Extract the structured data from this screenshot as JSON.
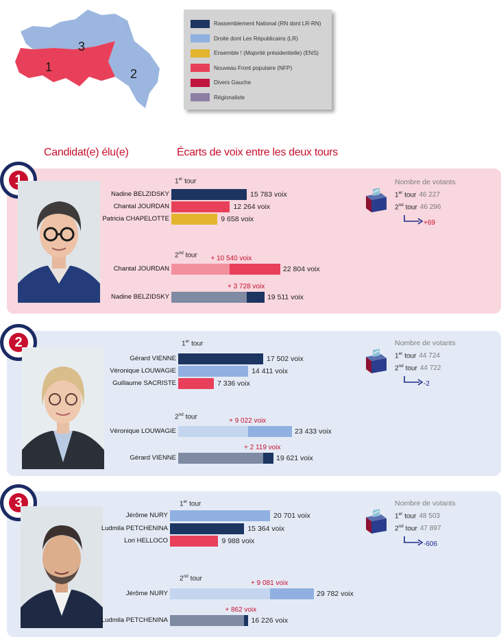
{
  "map": {
    "zones": [
      {
        "label": "1",
        "color": "#e8405a"
      },
      {
        "label": "2",
        "color": "#9bb6df"
      },
      {
        "label": "3",
        "color": "#9bb6df"
      }
    ]
  },
  "legend": [
    {
      "label": "Rassemblement National (RN dont LR-RN)",
      "color": "#1c3561"
    },
    {
      "label": "Droite dont Les Républicains (LR)",
      "color": "#8fb0e0"
    },
    {
      "label": "Ensemble ! (Majorité présidentielle) (ENS)",
      "color": "#e3b52e"
    },
    {
      "label": "Nouveau Front populaire (NFP)",
      "color": "#e8405a"
    },
    {
      "label": "Divers Gauche",
      "color": "#c0143c"
    },
    {
      "label": "Régionaliste",
      "color": "#8e7ea4"
    }
  ],
  "headings": {
    "elected": "Candidat(e) élu(e)",
    "gaps": "Écarts de voix entre les deux tours"
  },
  "labels": {
    "round1_num": "1",
    "round2_num": "2",
    "round1_sup": "er",
    "round2_sup": "nd",
    "tour": "tour",
    "voters_title": "Nombre de votants"
  },
  "chart_data": [
    {
      "type": "bar",
      "district": "1",
      "round1": [
        {
          "name": "Nadine BELZIDSKY",
          "votes": 15783,
          "votes_label": "15 783 voix",
          "color": "#1c3561"
        },
        {
          "name": "Chantal JOURDAN",
          "votes": 12264,
          "votes_label": "12 264 voix",
          "color": "#e8405a"
        },
        {
          "name": "Patricia CHAPELOTTE",
          "votes": 9658,
          "votes_label": "9 658 voix",
          "color": "#e3b52e"
        }
      ],
      "round2": [
        {
          "name": "Chantal JOURDAN",
          "votes": 22804,
          "votes_label": "22 804 voix",
          "gain": 10540,
          "gain_label": "+ 10 540 voix",
          "color": "#e8405a",
          "base_color": "#f2909e"
        },
        {
          "name": "Nadine BELZIDSKY",
          "votes": 19511,
          "votes_label": "19 511 voix",
          "gain": 3728,
          "gain_label": "+ 3 728 voix",
          "color": "#1c3561",
          "base_color": "#7f8aa3"
        }
      ],
      "voters": {
        "round1": "46 227",
        "round2": "46 296",
        "diff": "+69"
      }
    },
    {
      "type": "bar",
      "district": "2",
      "round1": [
        {
          "name": "Gérard VIENNE",
          "votes": 17502,
          "votes_label": "17 502 voix",
          "color": "#1c3561"
        },
        {
          "name": "Véronique LOUWAGIE",
          "votes": 14411,
          "votes_label": "14 411 voix",
          "color": "#8fb0e0"
        },
        {
          "name": "Guillaume SACRISTE",
          "votes": 7336,
          "votes_label": "7 336 voix",
          "color": "#e8405a"
        }
      ],
      "round2": [
        {
          "name": "Véronique LOUWAGIE",
          "votes": 23433,
          "votes_label": "23 433 voix",
          "gain": 9022,
          "gain_label": "+ 9 022 voix",
          "color": "#8fb0e0",
          "base_color": "#c3d5ef"
        },
        {
          "name": "Gérard VIENNE",
          "votes": 19621,
          "votes_label": "19 621 voix",
          "gain": 2119,
          "gain_label": "+ 2 119 voix",
          "color": "#1c3561",
          "base_color": "#7f8aa3"
        }
      ],
      "voters": {
        "round1": "44 724",
        "round2": "44 722",
        "diff": "-2"
      }
    },
    {
      "type": "bar",
      "district": "3",
      "round1": [
        {
          "name": "Jérôme NURY",
          "votes": 20701,
          "votes_label": "20 701 voix",
          "color": "#8fb0e0"
        },
        {
          "name": "Ludmila PETCHENINA",
          "votes": 15364,
          "votes_label": "15 364 voix",
          "color": "#1c3561"
        },
        {
          "name": "Lori HELLOCO",
          "votes": 9988,
          "votes_label": "9 988 voix",
          "color": "#e8405a"
        }
      ],
      "round2": [
        {
          "name": "Jérôme NURY",
          "votes": 29782,
          "votes_label": "29 782 voix",
          "gain": 9081,
          "gain_label": "+ 9 081 voix",
          "color": "#8fb0e0",
          "base_color": "#c3d5ef"
        },
        {
          "name": "Ludmila PETCHENINA",
          "votes": 16226,
          "votes_label": "16 226 voix",
          "gain": 862,
          "gain_label": "+ 862 voix",
          "color": "#1c3561",
          "base_color": "#7f8aa3"
        }
      ],
      "voters": {
        "round1": "48 503",
        "round2": "47 897",
        "diff": "-606"
      }
    }
  ]
}
